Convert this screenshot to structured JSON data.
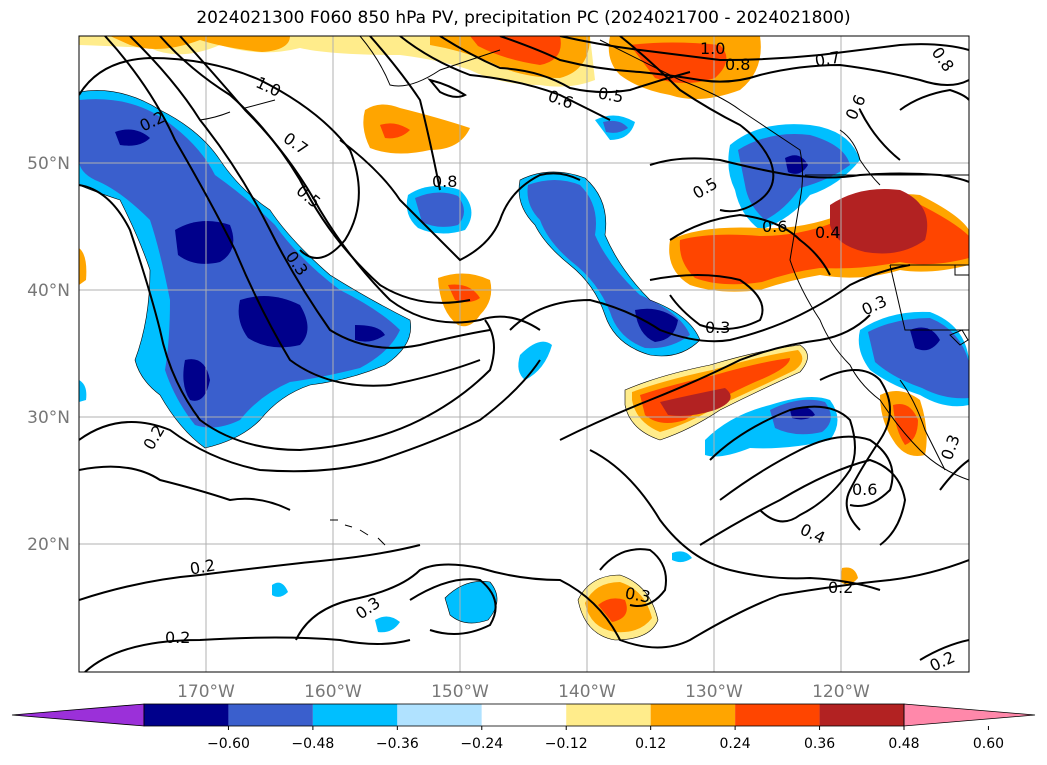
{
  "title": "2024021300 F060 850 hPa PV, precipitation PC (2024021700 - 2024021800)",
  "map": {
    "lat_labels": [
      "50°N",
      "40°N",
      "30°N",
      "20°N"
    ],
    "lon_labels": [
      "170°W",
      "160°W",
      "150°W",
      "140°W",
      "130°W",
      "120°W"
    ],
    "contour_labels": [
      "1.0",
      "0.7",
      "0.5",
      "0.3",
      "0.2",
      "0.2",
      "0.2",
      "0.2",
      "0.3",
      "0.8",
      "0.6",
      "0.5",
      "1.0",
      "0.8",
      "0.7",
      "0.8",
      "0.6",
      "0.5",
      "0.6",
      "0.4",
      "0.3",
      "0.3",
      "0.3",
      "0.6",
      "0.4",
      "0.2",
      "0.3",
      "0.2"
    ]
  },
  "colorbar": {
    "colors": [
      "#9b30d9",
      "#00008b",
      "#3a5fcd",
      "#00bfff",
      "#b0e2ff",
      "#ffffff",
      "#ffec8b",
      "#ffa500",
      "#ff4500",
      "#b22222",
      "#ff88aa"
    ],
    "ticks": [
      "−0.60",
      "−0.48",
      "−0.36",
      "−0.24",
      "−0.12",
      "0.12",
      "0.24",
      "0.36",
      "0.48",
      "0.60"
    ]
  }
}
